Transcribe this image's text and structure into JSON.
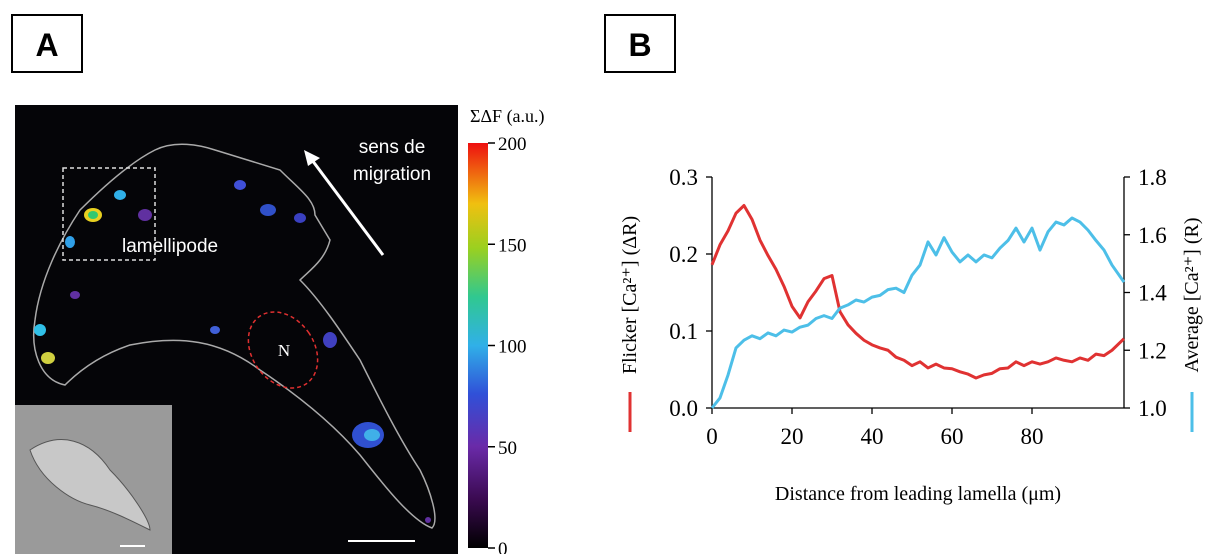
{
  "panel_a": {
    "label": "A",
    "annotations": {
      "migration": "sens de migration",
      "lamellipode": "lamellipode",
      "nucleus": "N"
    },
    "colorbar": {
      "title": "ΣΔF (a.u.)",
      "lim": [
        0,
        200
      ],
      "ticks": [
        0,
        50,
        100,
        150,
        200
      ]
    }
  },
  "chart_data": {
    "type": "line",
    "panel_label": "B",
    "xlabel": "Distance from leading lamella (μm)",
    "ylabel": "Flicker [Ca²⁺] (ΔR)",
    "y2label": "Average [Ca²⁺] (R)",
    "x": [
      0,
      2,
      4,
      6,
      8,
      10,
      12,
      14,
      16,
      18,
      20,
      22,
      24,
      26,
      28,
      30,
      32,
      34,
      36,
      38,
      40,
      42,
      44,
      46,
      48,
      50,
      52,
      54,
      56,
      58,
      60,
      62,
      64,
      66,
      68,
      70,
      72,
      74,
      76,
      78,
      80,
      82,
      84,
      86,
      88,
      90,
      92,
      94,
      96,
      98,
      100,
      103
    ],
    "xlim": [
      0,
      103
    ],
    "xticks": [
      0,
      20,
      40,
      60,
      80
    ],
    "ylim": [
      0,
      0.3
    ],
    "yticks": [
      {
        "value": 0,
        "label": "0.0"
      },
      0.1,
      0.2,
      0.3
    ],
    "y2lim": [
      1.0,
      1.8
    ],
    "y2ticks": [
      {
        "value": 1.0,
        "label": "1.0"
      },
      1.2,
      1.4,
      1.6,
      1.8
    ],
    "series": [
      {
        "name": "Flicker",
        "color": "#e03232",
        "values": [
          0.186,
          0.212,
          0.23,
          0.253,
          0.263,
          0.245,
          0.218,
          0.198,
          0.18,
          0.158,
          0.132,
          0.117,
          0.138,
          0.152,
          0.168,
          0.172,
          0.125,
          0.108,
          0.097,
          0.088,
          0.082,
          0.078,
          0.075,
          0.066,
          0.062,
          0.055,
          0.06,
          0.052,
          0.057,
          0.052,
          0.051,
          0.047,
          0.044,
          0.039,
          0.043,
          0.045,
          0.051,
          0.052,
          0.06,
          0.055,
          0.06,
          0.057,
          0.06,
          0.065,
          0.062,
          0.06,
          0.065,
          0.062,
          0.07,
          0.068,
          0.075,
          0.09
        ]
      },
      {
        "name": "Average",
        "color": "#4dbfe8",
        "axis": "y2",
        "values": [
          1.0,
          1.035,
          1.114,
          1.208,
          1.235,
          1.25,
          1.24,
          1.26,
          1.25,
          1.27,
          1.263,
          1.28,
          1.287,
          1.31,
          1.32,
          1.31,
          1.346,
          1.357,
          1.374,
          1.367,
          1.384,
          1.39,
          1.41,
          1.415,
          1.4,
          1.46,
          1.495,
          1.575,
          1.53,
          1.59,
          1.54,
          1.506,
          1.53,
          1.506,
          1.53,
          1.52,
          1.554,
          1.58,
          1.623,
          1.575,
          1.623,
          1.547,
          1.61,
          1.644,
          1.634,
          1.658,
          1.644,
          1.616,
          1.58,
          1.547,
          1.495,
          1.436
        ]
      }
    ]
  }
}
